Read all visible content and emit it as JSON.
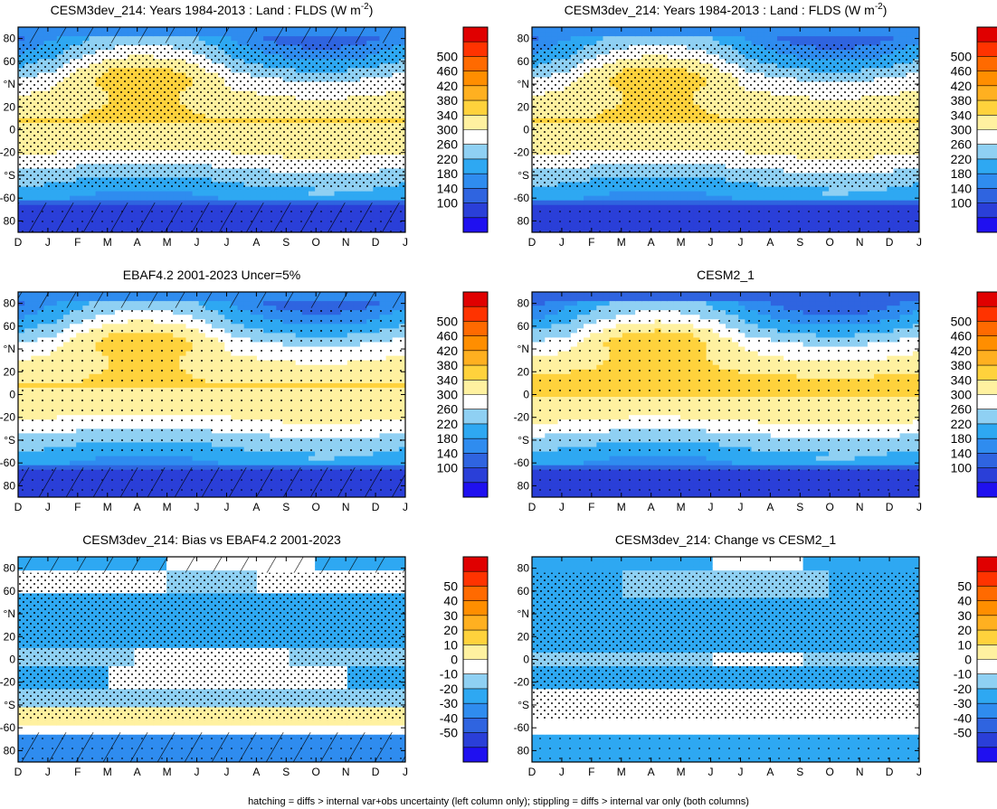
{
  "footer": "hatching = diffs > internal var+obs uncertainty (left column only); stippling = diffs > internal var only (both columns)",
  "chart_data": [
    {
      "type": "heatmap",
      "title": "CESM3dev_214: Years 1984-2013 : Land : FLDS (W m",
      "title_superscript": "-2",
      "title_close": ")",
      "field": "abs",
      "hatch": "left",
      "stipple": "dense",
      "xlabels": [
        "D",
        "J",
        "F",
        "M",
        "A",
        "M",
        "J",
        "J",
        "A",
        "S",
        "O",
        "N",
        "D",
        "J"
      ],
      "ylabels": [
        "80",
        "60",
        "°N",
        "20",
        "0",
        "-20",
        "°S",
        "-60",
        "80"
      ],
      "ylim": [
        -90,
        90
      ],
      "levels": [
        100,
        140,
        180,
        220,
        260,
        300,
        340,
        380,
        420,
        460,
        500
      ],
      "colorbar_labels": [
        "500",
        "460",
        "420",
        "380",
        "340",
        "300",
        "260",
        "220",
        "180",
        "140",
        "100"
      ]
    },
    {
      "type": "heatmap",
      "title": "CESM3dev_214: Years 1984-2013 : Land : FLDS (W m",
      "title_superscript": "-2",
      "title_close": ")",
      "field": "abs",
      "hatch": "none",
      "stipple": "dense",
      "xlabels": [
        "D",
        "J",
        "F",
        "M",
        "A",
        "M",
        "J",
        "J",
        "A",
        "S",
        "O",
        "N",
        "D",
        "J"
      ],
      "ylabels": [
        "80",
        "60",
        "°N",
        "20",
        "0",
        "-20",
        "°S",
        "-60",
        "80"
      ],
      "ylim": [
        -90,
        90
      ],
      "levels": [
        100,
        140,
        180,
        220,
        260,
        300,
        340,
        380,
        420,
        460,
        500
      ],
      "colorbar_labels": [
        "500",
        "460",
        "420",
        "380",
        "340",
        "300",
        "260",
        "220",
        "180",
        "140",
        "100"
      ]
    },
    {
      "type": "heatmap",
      "title": "EBAF4.2 2001-2023 Uncer=5%",
      "field": "abs",
      "hatch": "left",
      "stipple": "sparse",
      "xlabels": [
        "D",
        "J",
        "F",
        "M",
        "A",
        "M",
        "J",
        "J",
        "A",
        "S",
        "O",
        "N",
        "D",
        "J"
      ],
      "ylabels": [
        "80",
        "60",
        "°N",
        "20",
        "0",
        "-20",
        "°S",
        "-60",
        "80"
      ],
      "ylim": [
        -90,
        90
      ],
      "levels": [
        100,
        140,
        180,
        220,
        260,
        300,
        340,
        380,
        420,
        460,
        500
      ],
      "colorbar_labels": [
        "500",
        "460",
        "420",
        "380",
        "340",
        "300",
        "260",
        "220",
        "180",
        "140",
        "100"
      ]
    },
    {
      "type": "heatmap",
      "title": "CESM2_1",
      "field": "abs",
      "hatch": "none",
      "stipple": "sparse",
      "xlabels": [
        "D",
        "J",
        "F",
        "M",
        "A",
        "M",
        "J",
        "J",
        "A",
        "S",
        "O",
        "N",
        "D",
        "J"
      ],
      "ylabels": [
        "80",
        "60",
        "°N",
        "20",
        "0",
        "-20",
        "°S",
        "-60",
        "80"
      ],
      "ylim": [
        -90,
        90
      ],
      "levels": [
        100,
        140,
        180,
        220,
        260,
        300,
        340,
        380,
        420,
        460,
        500
      ],
      "colorbar_labels": [
        "500",
        "460",
        "420",
        "380",
        "340",
        "300",
        "260",
        "220",
        "180",
        "140",
        "100"
      ]
    },
    {
      "type": "heatmap",
      "title": "CESM3dev_214: Bias vs EBAF4.2 2001-2023",
      "field": "bias",
      "hatch": "left",
      "stipple": "dense",
      "xlabels": [
        "D",
        "J",
        "F",
        "M",
        "A",
        "M",
        "J",
        "J",
        "A",
        "S",
        "O",
        "N",
        "D",
        "J"
      ],
      "ylabels": [
        "80",
        "60",
        "°N",
        "20",
        "0",
        "-20",
        "°S",
        "-60",
        "80"
      ],
      "ylim": [
        -90,
        90
      ],
      "levels": [
        -50,
        -40,
        -30,
        -20,
        -10,
        0,
        10,
        20,
        30,
        40,
        50
      ],
      "colorbar_labels": [
        "50",
        "40",
        "30",
        "20",
        "10",
        "0",
        "-10",
        "-20",
        "-30",
        "-40",
        "-50"
      ]
    },
    {
      "type": "heatmap",
      "title": "CESM3dev_214: Change vs CESM2_1",
      "field": "change",
      "hatch": "none",
      "stipple": "dense",
      "xlabels": [
        "D",
        "J",
        "F",
        "M",
        "A",
        "M",
        "J",
        "J",
        "A",
        "S",
        "O",
        "N",
        "D",
        "J"
      ],
      "ylabels": [
        "80",
        "60",
        "°N",
        "20",
        "0",
        "-20",
        "°S",
        "-60",
        "80"
      ],
      "ylim": [
        -90,
        90
      ],
      "levels": [
        -50,
        -40,
        -30,
        -20,
        -10,
        0,
        10,
        20,
        30,
        40,
        50
      ],
      "colorbar_labels": [
        "50",
        "40",
        "30",
        "20",
        "10",
        "0",
        "-10",
        "-20",
        "-30",
        "-40",
        "-50"
      ]
    }
  ],
  "palette": [
    "#1f10f0",
    "#2a3fd8",
    "#2f64e0",
    "#2f8cef",
    "#2ea8f2",
    "#8fd0f3",
    "#ffffff",
    "#fff1a0",
    "#ffd23c",
    "#ffb020",
    "#ff8e00",
    "#ff6a00",
    "#ff3300",
    "#e00000"
  ]
}
